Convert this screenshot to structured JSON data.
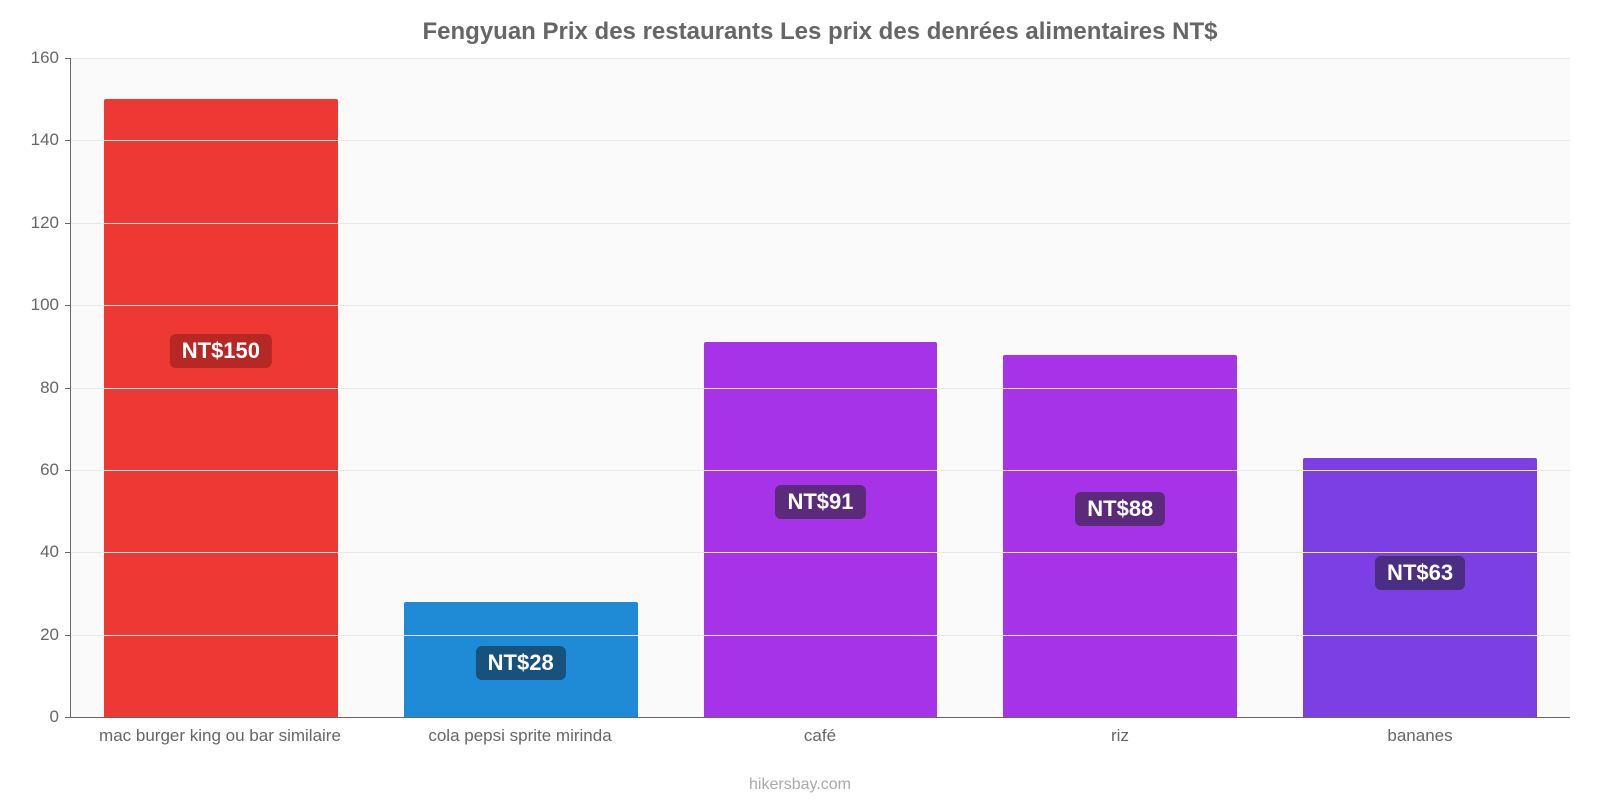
{
  "chart": {
    "type": "bar",
    "title": "Fengyuan Prix des restaurants Les prix des denrées alimentaires NT$",
    "title_color": "#666666",
    "title_fontsize": 24,
    "background_color": "#ffffff",
    "plot_bg_color": "#fafafa",
    "grid_color": "#e8e8e8",
    "axis_color": "#666666",
    "label_color": "#666666",
    "label_fontsize": 17,
    "ylim_min": 0,
    "ylim_max": 160,
    "ytick_step": 20,
    "yticks": [
      0,
      20,
      40,
      60,
      80,
      100,
      120,
      140,
      160
    ],
    "categories": [
      "mac burger king ou bar similaire",
      "cola pepsi sprite mirinda",
      "café",
      "riz",
      "bananes"
    ],
    "values": [
      150,
      28,
      91,
      88,
      63
    ],
    "value_labels": [
      "NT$150",
      "NT$28",
      "NT$91",
      "NT$88",
      "NT$63"
    ],
    "bar_colors": [
      "#ed3833",
      "#1f8ad6",
      "#a633e8",
      "#a633e8",
      "#7b3fe4"
    ],
    "badge_bg_colors": [
      "#b52824",
      "#17527d",
      "#5c2a7a",
      "#5c2a7a",
      "#4a2e82"
    ],
    "badge_text_color": "#ffffff",
    "bar_width_pct": 78,
    "credit": "hikersbay.com",
    "credit_color": "#aaaaaa"
  }
}
